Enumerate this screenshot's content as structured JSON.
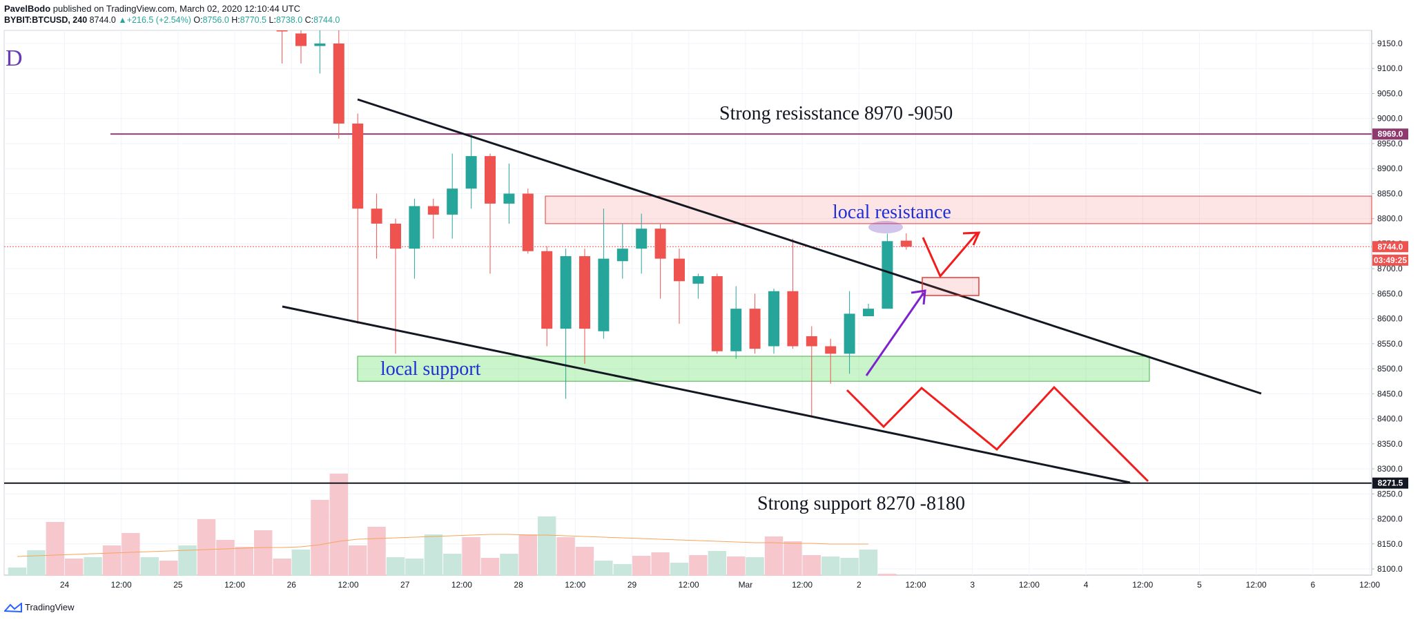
{
  "header": {
    "line1_author": "PavelBodo",
    "line1_rest": " published on TradingView.com, March 02, 2020 12:10:44 UTC",
    "symbol": "BYBIT:BTCUSD, 240",
    "last": "8744.0",
    "change": "+216.5 (+2.54%)",
    "o_label": "O:",
    "o_value": "8756.0",
    "h_label": "H:",
    "h_value": "8770.5",
    "l_label": "L:",
    "l_value": "8738.0",
    "c_label": "C:",
    "c_value": "8744.0"
  },
  "footer": {
    "brand": "TradingView"
  },
  "chart_data": {
    "type": "candlestick",
    "y_range": [
      8080,
      9190
    ],
    "y_ticks": [
      "8100.0",
      "8150.0",
      "8200.0",
      "8250.0",
      "8300.0",
      "8350.0",
      "8400.0",
      "8450.0",
      "8500.0",
      "8550.0",
      "8600.0",
      "8650.0",
      "8700.0",
      "8750.0",
      "8800.0",
      "8850.0",
      "8900.0",
      "8950.0",
      "9000.0",
      "9050.0",
      "9100.0",
      "9150.0"
    ],
    "x_ticks": [
      {
        "i": 2.5,
        "label": "24"
      },
      {
        "i": 5.5,
        "label": "12:00"
      },
      {
        "i": 8.5,
        "label": "25"
      },
      {
        "i": 11.5,
        "label": "12:00"
      },
      {
        "i": 14.5,
        "label": "26"
      },
      {
        "i": 17.5,
        "label": "12:00"
      },
      {
        "i": 20.5,
        "label": "27"
      },
      {
        "i": 23.5,
        "label": "12:00"
      },
      {
        "i": 26.5,
        "label": "28"
      },
      {
        "i": 29.5,
        "label": "12:00"
      },
      {
        "i": 32.5,
        "label": "29"
      },
      {
        "i": 35.5,
        "label": "12:00"
      },
      {
        "i": 38.5,
        "label": "Mar"
      },
      {
        "i": 41.5,
        "label": "12:00"
      },
      {
        "i": 44.5,
        "label": "2"
      },
      {
        "i": 47.5,
        "label": "12:00"
      },
      {
        "i": 50.5,
        "label": "3"
      },
      {
        "i": 53.5,
        "label": "12:00"
      },
      {
        "i": 56.5,
        "label": "4"
      },
      {
        "i": 59.5,
        "label": "12:00"
      },
      {
        "i": 62.5,
        "label": "5"
      },
      {
        "i": 65.5,
        "label": "12:00"
      },
      {
        "i": 68.5,
        "label": "6"
      },
      {
        "i": 71.5,
        "label": "12:00"
      }
    ],
    "candles": [
      {
        "i": 14,
        "o": 9190,
        "h": 9190,
        "l": 9110,
        "c": 9175
      },
      {
        "i": 15,
        "o": 9170,
        "h": 9190,
        "l": 9110,
        "c": 9145
      },
      {
        "i": 16,
        "o": 9145,
        "h": 9190,
        "l": 9090,
        "c": 9150
      },
      {
        "i": 17,
        "o": 9150,
        "h": 9185,
        "l": 8960,
        "c": 8990
      },
      {
        "i": 18,
        "o": 8990,
        "h": 9010,
        "l": 8590,
        "c": 8820
      },
      {
        "i": 19,
        "o": 8820,
        "h": 8850,
        "l": 8720,
        "c": 8790
      },
      {
        "i": 20,
        "o": 8790,
        "h": 8800,
        "l": 8530,
        "c": 8740
      },
      {
        "i": 21,
        "o": 8740,
        "h": 8840,
        "l": 8680,
        "c": 8825
      },
      {
        "i": 22,
        "o": 8825,
        "h": 8840,
        "l": 8760,
        "c": 8808
      },
      {
        "i": 23,
        "o": 8808,
        "h": 8930,
        "l": 8760,
        "c": 8860
      },
      {
        "i": 24,
        "o": 8860,
        "h": 8970,
        "l": 8820,
        "c": 8925
      },
      {
        "i": 25,
        "o": 8925,
        "h": 8930,
        "l": 8690,
        "c": 8830
      },
      {
        "i": 26,
        "o": 8830,
        "h": 8910,
        "l": 8790,
        "c": 8850
      },
      {
        "i": 27,
        "o": 8850,
        "h": 8860,
        "l": 8730,
        "c": 8735
      },
      {
        "i": 28,
        "o": 8735,
        "h": 8745,
        "l": 8545,
        "c": 8580
      },
      {
        "i": 29,
        "o": 8580,
        "h": 8740,
        "l": 8440,
        "c": 8725
      },
      {
        "i": 30,
        "o": 8725,
        "h": 8740,
        "l": 8510,
        "c": 8580
      },
      {
        "i": 31,
        "o": 8575,
        "h": 8820,
        "l": 8560,
        "c": 8720
      },
      {
        "i": 32,
        "o": 8715,
        "h": 8790,
        "l": 8680,
        "c": 8740
      },
      {
        "i": 33,
        "o": 8740,
        "h": 8810,
        "l": 8690,
        "c": 8780
      },
      {
        "i": 34,
        "o": 8780,
        "h": 8790,
        "l": 8640,
        "c": 8720
      },
      {
        "i": 35,
        "o": 8720,
        "h": 8740,
        "l": 8590,
        "c": 8675
      },
      {
        "i": 36,
        "o": 8670,
        "h": 8690,
        "l": 8640,
        "c": 8685
      },
      {
        "i": 37,
        "o": 8685,
        "h": 8690,
        "l": 8530,
        "c": 8535
      },
      {
        "i": 38,
        "o": 8535,
        "h": 8665,
        "l": 8520,
        "c": 8620
      },
      {
        "i": 39,
        "o": 8620,
        "h": 8650,
        "l": 8530,
        "c": 8540
      },
      {
        "i": 40,
        "o": 8545,
        "h": 8660,
        "l": 8530,
        "c": 8655
      },
      {
        "i": 41,
        "o": 8655,
        "h": 8760,
        "l": 8540,
        "c": 8545
      },
      {
        "i": 42,
        "o": 8565,
        "h": 8585,
        "l": 8405,
        "c": 8545
      },
      {
        "i": 43,
        "o": 8545,
        "h": 8560,
        "l": 8470,
        "c": 8530
      },
      {
        "i": 44,
        "o": 8530,
        "h": 8655,
        "l": 8490,
        "c": 8610
      },
      {
        "i": 45,
        "o": 8605,
        "h": 8630,
        "l": 8605,
        "c": 8620
      },
      {
        "i": 46,
        "o": 8620,
        "h": 8770,
        "l": 8620,
        "c": 8755
      },
      {
        "i": 47,
        "o": 8756,
        "h": 8770.5,
        "l": 8738,
        "c": 8744
      }
    ],
    "volume": [
      {
        "i": 0,
        "v": 12,
        "up": true
      },
      {
        "i": 1,
        "v": 37,
        "up": true
      },
      {
        "i": 2,
        "v": 78,
        "up": false
      },
      {
        "i": 3,
        "v": 25,
        "up": false
      },
      {
        "i": 4,
        "v": 27,
        "up": true
      },
      {
        "i": 5,
        "v": 44,
        "up": false
      },
      {
        "i": 6,
        "v": 62,
        "up": false
      },
      {
        "i": 7,
        "v": 27,
        "up": true
      },
      {
        "i": 8,
        "v": 22,
        "up": false
      },
      {
        "i": 9,
        "v": 44,
        "up": true
      },
      {
        "i": 10,
        "v": 82,
        "up": false
      },
      {
        "i": 11,
        "v": 52,
        "up": false
      },
      {
        "i": 12,
        "v": 42,
        "up": false
      },
      {
        "i": 13,
        "v": 66,
        "up": false
      },
      {
        "i": 14,
        "v": 25,
        "up": false
      },
      {
        "i": 15,
        "v": 38,
        "up": true
      },
      {
        "i": 16,
        "v": 110,
        "up": false
      },
      {
        "i": 17,
        "v": 148,
        "up": false
      },
      {
        "i": 18,
        "v": 44,
        "up": false
      },
      {
        "i": 19,
        "v": 71,
        "up": false
      },
      {
        "i": 20,
        "v": 27,
        "up": true
      },
      {
        "i": 21,
        "v": 25,
        "up": true
      },
      {
        "i": 22,
        "v": 60,
        "up": true
      },
      {
        "i": 23,
        "v": 32,
        "up": true
      },
      {
        "i": 24,
        "v": 56,
        "up": false
      },
      {
        "i": 25,
        "v": 26,
        "up": false
      },
      {
        "i": 26,
        "v": 32,
        "up": true
      },
      {
        "i": 27,
        "v": 60,
        "up": false
      },
      {
        "i": 28,
        "v": 86,
        "up": true
      },
      {
        "i": 29,
        "v": 56,
        "up": false
      },
      {
        "i": 30,
        "v": 42,
        "up": false
      },
      {
        "i": 31,
        "v": 22,
        "up": true
      },
      {
        "i": 32,
        "v": 17,
        "up": true
      },
      {
        "i": 33,
        "v": 29,
        "up": false
      },
      {
        "i": 34,
        "v": 34,
        "up": false
      },
      {
        "i": 35,
        "v": 19,
        "up": true
      },
      {
        "i": 36,
        "v": 30,
        "up": false
      },
      {
        "i": 37,
        "v": 36,
        "up": true
      },
      {
        "i": 38,
        "v": 28,
        "up": false
      },
      {
        "i": 39,
        "v": 27,
        "up": true
      },
      {
        "i": 40,
        "v": 57,
        "up": false
      },
      {
        "i": 41,
        "v": 50,
        "up": false
      },
      {
        "i": 42,
        "v": 30,
        "up": false
      },
      {
        "i": 43,
        "v": 28,
        "up": true
      },
      {
        "i": 44,
        "v": 26,
        "up": true
      },
      {
        "i": 45,
        "v": 38,
        "up": true
      },
      {
        "i": 46,
        "v": 3,
        "up": false
      }
    ],
    "volume_ma": [
      28,
      29,
      30,
      31,
      32,
      33,
      34,
      35,
      36,
      37,
      38,
      39,
      40,
      41,
      41,
      42,
      45,
      50,
      53,
      54,
      55,
      56,
      57,
      58,
      59,
      60,
      60,
      59,
      59,
      58,
      57,
      56,
      55,
      54,
      53,
      52,
      51,
      50,
      49,
      48,
      48,
      47,
      47,
      46,
      46,
      46
    ],
    "drawings": {
      "corner_label": "D",
      "strong_resistance_label": "Strong resisstance 8970 -9050",
      "strong_support_label": "Strong support 8270 -8180",
      "local_resistance_label": "local resistance",
      "local_support_label": "local support",
      "horizontal_lines": [
        8969.0,
        8271.5
      ],
      "local_resistance_zone": [
        8790,
        8845
      ],
      "local_support_zone": [
        8475,
        8525
      ]
    },
    "price_tags": [
      {
        "label": "8969.0",
        "value": 8969.0,
        "color": "#8e3a6e"
      },
      {
        "label": "8744.0",
        "value": 8744.0,
        "color": "#ef5350"
      },
      {
        "label": "03:49:25",
        "value": 8717,
        "color": "#ef5350"
      },
      {
        "label": "8271.5",
        "value": 8271.5,
        "color": "#131722"
      }
    ],
    "colors": {
      "up": "#26a69a",
      "down": "#ef5350",
      "up_vol": "#c8e6dc",
      "down_vol": "#f6c8cd"
    }
  }
}
